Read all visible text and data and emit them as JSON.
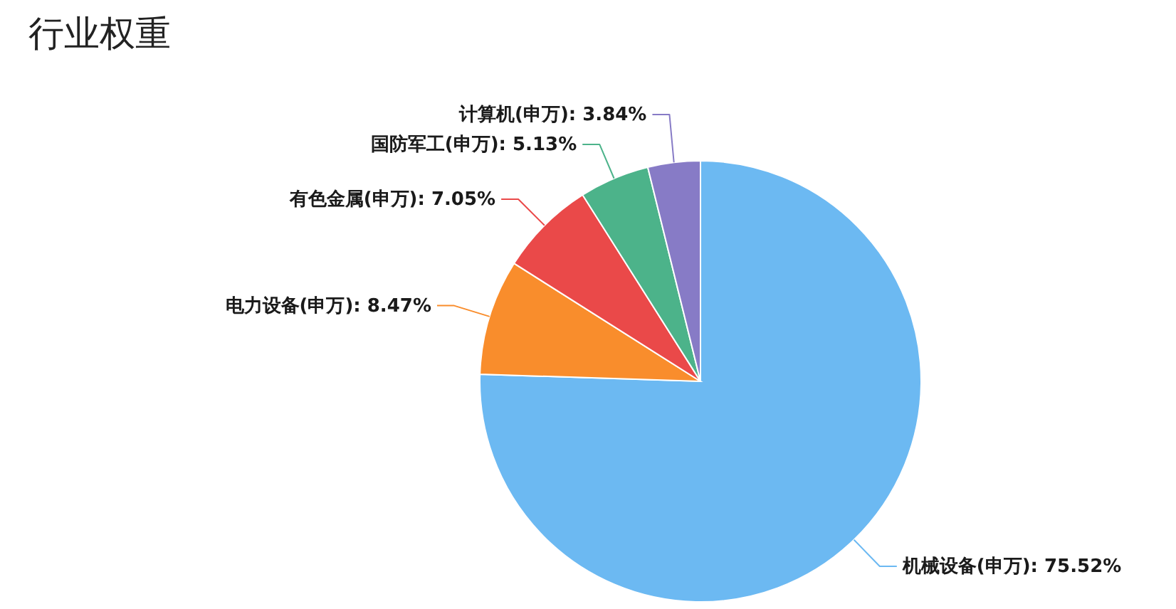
{
  "chart_data": {
    "type": "pie",
    "title": "行业权重",
    "categories": [
      "机械设备(申万)",
      "电力设备(申万)",
      "有色金属(申万)",
      "国防军工(申万)",
      "计算机(申万)"
    ],
    "values": [
      75.52,
      8.47,
      7.05,
      5.13,
      3.84
    ],
    "colors": [
      "#6cb9f2",
      "#f98d2c",
      "#ea4949",
      "#4cb38a",
      "#877bc6"
    ],
    "value_labels": [
      "75.52%",
      "8.47%",
      "7.05%",
      "5.13%",
      "3.84%"
    ]
  }
}
